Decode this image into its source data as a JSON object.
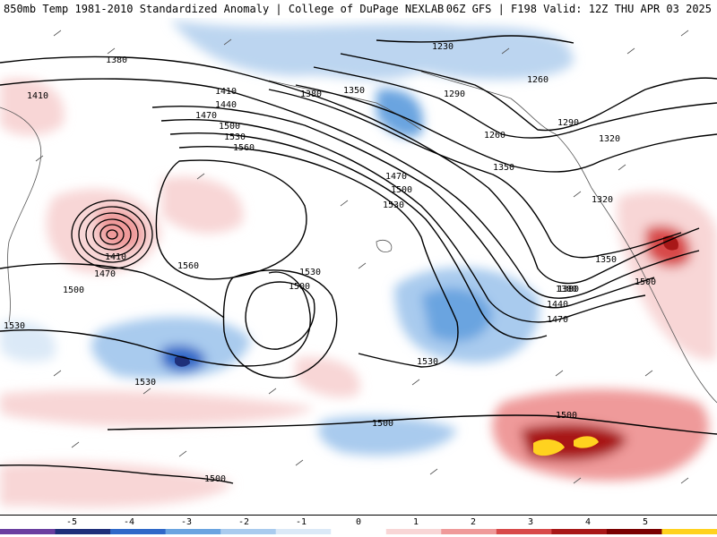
{
  "header": {
    "title_left": "850mb Temp 1981-2010 Standardized Anomaly | College of DuPage NEXLAB",
    "title_right": "06Z GFS | F198 Valid: 12Z THU APR 03 2025"
  },
  "contour_labels": [
    "1380",
    "1410",
    "1410",
    "1440",
    "1470",
    "1500",
    "1530",
    "1560",
    "1230",
    "1260",
    "1260",
    "1290",
    "1290",
    "1320",
    "1320",
    "1350",
    "1350",
    "1380",
    "1380",
    "1410",
    "1470",
    "1500",
    "1530",
    "1560",
    "1470",
    "1500",
    "1530",
    "1530",
    "1500",
    "1530",
    "1350",
    "1380",
    "1440",
    "1470",
    "1500",
    "1500",
    "1500",
    "1500",
    "1530"
  ],
  "legend": {
    "ticks": [
      "-5",
      "-4",
      "-3",
      "-2",
      "-1",
      "0",
      "1",
      "2",
      "3",
      "4",
      "5"
    ],
    "colors": [
      "#6a3fa0",
      "#1f2f7a",
      "#2f68c8",
      "#6aa4e0",
      "#a9cbee",
      "#dbe9f7",
      "#ffffff",
      "#f8d6d6",
      "#ef9a9a",
      "#d84a4a",
      "#a81818",
      "#7a0000",
      "#ffd21f"
    ]
  }
}
